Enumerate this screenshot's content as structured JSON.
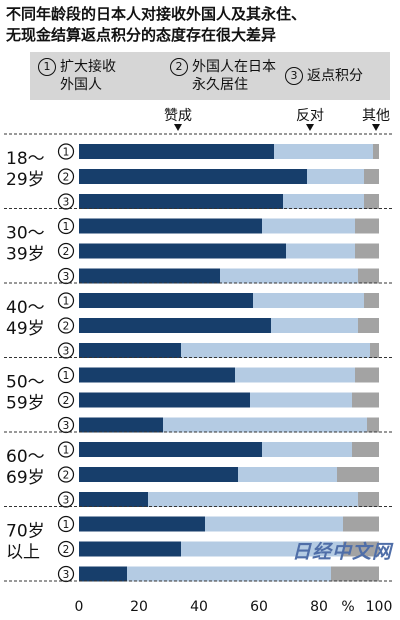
{
  "title": "不同年龄段的日本人对接收外国人及其永住、无现金结算返点积分的态度存在很大差异",
  "title_lines": [
    "不同年龄段的日本人对接收外国人及其永住、",
    "无现金结算返点积分的态度存在很大差异"
  ],
  "legend": [
    {
      "num": "1",
      "lines": [
        "扩大接收",
        "外国人"
      ]
    },
    {
      "num": "2",
      "lines": [
        "外国人在日本",
        "永久居住"
      ]
    },
    {
      "num": "3",
      "lines": [
        "返点积分"
      ]
    }
  ],
  "watermark": "日经中文网",
  "colors": {
    "support": "#173e6b",
    "oppose": "#b4cbe3",
    "other": "#a3a3a3"
  },
  "chart_data": {
    "type": "bar",
    "orientation": "horizontal",
    "stacked": true,
    "xlim": [
      0,
      100
    ],
    "xticks": [
      "0",
      "20",
      "40",
      "60",
      "80",
      "%",
      "100"
    ],
    "series": [
      {
        "name": "赞成",
        "color": "#173e6b"
      },
      {
        "name": "反对",
        "color": "#b4cbe3"
      },
      {
        "name": "其他",
        "color": "#a3a3a3"
      }
    ],
    "groups": [
      {
        "label": "18～29岁",
        "label_lines": [
          "18～",
          "29岁"
        ],
        "bars": [
          {
            "item": "1",
            "values": [
              65,
              33,
              2
            ]
          },
          {
            "item": "2",
            "values": [
              76,
              19,
              5
            ]
          },
          {
            "item": "3",
            "values": [
              68,
              27,
              5
            ]
          }
        ]
      },
      {
        "label": "30～39岁",
        "label_lines": [
          "30～",
          "39岁"
        ],
        "bars": [
          {
            "item": "1",
            "values": [
              61,
              31,
              8
            ]
          },
          {
            "item": "2",
            "values": [
              69,
              23,
              8
            ]
          },
          {
            "item": "3",
            "values": [
              47,
              46,
              7
            ]
          }
        ]
      },
      {
        "label": "40～49岁",
        "label_lines": [
          "40～",
          "49岁"
        ],
        "bars": [
          {
            "item": "1",
            "values": [
              58,
              37,
              5
            ]
          },
          {
            "item": "2",
            "values": [
              64,
              29,
              7
            ]
          },
          {
            "item": "3",
            "values": [
              34,
              63,
              3
            ]
          }
        ]
      },
      {
        "label": "50～59岁",
        "label_lines": [
          "50～",
          "59岁"
        ],
        "bars": [
          {
            "item": "1",
            "values": [
              52,
              40,
              8
            ]
          },
          {
            "item": "2",
            "values": [
              57,
              34,
              9
            ]
          },
          {
            "item": "3",
            "values": [
              28,
              68,
              4
            ]
          }
        ]
      },
      {
        "label": "60～69岁",
        "label_lines": [
          "60～",
          "69岁"
        ],
        "bars": [
          {
            "item": "1",
            "values": [
              61,
              30,
              9
            ]
          },
          {
            "item": "2",
            "values": [
              53,
              33,
              14
            ]
          },
          {
            "item": "3",
            "values": [
              23,
              70,
              7
            ]
          }
        ]
      },
      {
        "label": "70岁以上",
        "label_lines": [
          "70岁",
          "以上"
        ],
        "bars": [
          {
            "item": "1",
            "values": [
              42,
              46,
              12
            ]
          },
          {
            "item": "2",
            "values": [
              34,
              54,
              12
            ]
          },
          {
            "item": "3",
            "values": [
              16,
              68,
              16
            ]
          }
        ]
      }
    ]
  }
}
